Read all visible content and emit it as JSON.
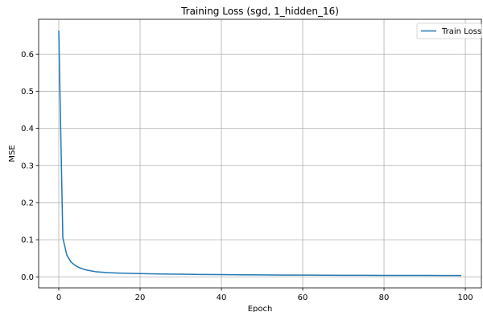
{
  "chart_data": {
    "type": "line",
    "title": "Training Loss (sgd, 1_hidden_16)",
    "xlabel": "Epoch",
    "ylabel": "MSE",
    "xlim": [
      -4.95,
      103.95
    ],
    "ylim": [
      -0.0297,
      0.6937
    ],
    "xticks": [
      0,
      20,
      40,
      60,
      80,
      100
    ],
    "yticks": [
      0.0,
      0.1,
      0.2,
      0.3,
      0.4,
      0.5,
      0.6
    ],
    "ytick_labels": [
      "0.0",
      "0.1",
      "0.2",
      "0.3",
      "0.4",
      "0.5",
      "0.6"
    ],
    "grid": true,
    "legend_position": "top-right",
    "series": [
      {
        "name": "Train Loss",
        "color": "#1f77b4",
        "x": [
          0,
          1,
          2,
          3,
          4,
          5,
          6,
          7,
          8,
          9,
          10,
          12,
          14,
          16,
          18,
          20,
          25,
          30,
          35,
          40,
          45,
          50,
          55,
          60,
          65,
          70,
          75,
          80,
          85,
          90,
          95,
          99
        ],
        "y": [
          0.663,
          0.105,
          0.058,
          0.04,
          0.031,
          0.025,
          0.021,
          0.018,
          0.016,
          0.014,
          0.013,
          0.0115,
          0.0105,
          0.0098,
          0.0092,
          0.0088,
          0.0078,
          0.007,
          0.0064,
          0.0059,
          0.0055,
          0.0051,
          0.0048,
          0.0046,
          0.0044,
          0.0042,
          0.0041,
          0.004,
          0.0039,
          0.0038,
          0.0037,
          0.0037
        ]
      }
    ]
  }
}
